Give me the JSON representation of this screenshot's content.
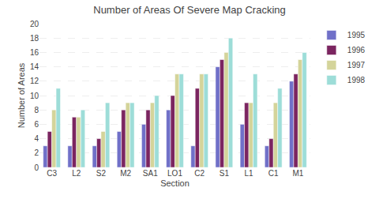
{
  "chart_data": {
    "type": "bar",
    "title": "Number of Areas Of Severe Map Cracking",
    "xlabel": "Section",
    "ylabel": "Number of Areas",
    "categories": [
      "C3",
      "L2",
      "S2",
      "M2",
      "SA1",
      "LO1",
      "C2",
      "S1",
      "L1",
      "C1",
      "M1"
    ],
    "series": [
      {
        "name": "1995",
        "color": "#7070C8",
        "values": [
          3,
          3,
          3,
          5,
          6,
          8,
          3,
          14,
          6,
          3,
          12
        ]
      },
      {
        "name": "1996",
        "color": "#7B2560",
        "values": [
          5,
          7,
          4,
          8,
          8,
          10,
          11,
          15,
          9,
          4,
          13
        ]
      },
      {
        "name": "1997",
        "color": "#D4D49A",
        "values": [
          8,
          7,
          5,
          9,
          9,
          13,
          13,
          16,
          9,
          9,
          15
        ]
      },
      {
        "name": "1998",
        "color": "#9DDDD8",
        "values": [
          11,
          8,
          9,
          9,
          10,
          13,
          13,
          18,
          13,
          11,
          16
        ]
      }
    ],
    "ylim": [
      0,
      20
    ],
    "yticks": [
      0,
      2,
      4,
      6,
      8,
      10,
      12,
      14,
      16,
      18,
      20
    ],
    "grid": true,
    "legend": "right"
  }
}
